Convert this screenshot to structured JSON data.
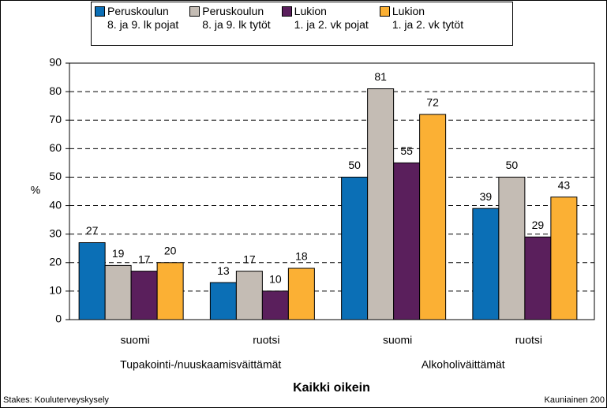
{
  "chart_data": {
    "type": "bar",
    "title": "Kaikki oikein",
    "source": "Stakes: Kouluterveyskysely",
    "note": "Kauniainen 200",
    "ylabel": "%",
    "categories": [
      "suomi",
      "ruotsi",
      "suomi",
      "ruotsi"
    ],
    "groups": [
      "Tupakointi-/nuuskaamisväittämät",
      "Alkoholiväittämät"
    ],
    "series": [
      {
        "name": "Peruskoulun\n8. ja 9. lk pojat",
        "color": "#0b6fb6",
        "values": [
          27,
          13,
          50,
          39
        ]
      },
      {
        "name": "Peruskoulun\n8. ja 9. lk tytöt",
        "color": "#c4bcb4",
        "values": [
          19,
          17,
          81,
          50
        ]
      },
      {
        "name": "Lukion\n1. ja 2. vk pojat",
        "color": "#5a1f5c",
        "values": [
          17,
          10,
          55,
          29
        ]
      },
      {
        "name": "Lukion\n1. ja 2. vk tytöt",
        "color": "#fbb034",
        "values": [
          20,
          18,
          72,
          43
        ]
      }
    ],
    "ylim": [
      0,
      90
    ],
    "yticks": [
      0,
      10,
      20,
      30,
      40,
      50,
      60,
      70,
      80,
      90
    ],
    "grid": true
  }
}
